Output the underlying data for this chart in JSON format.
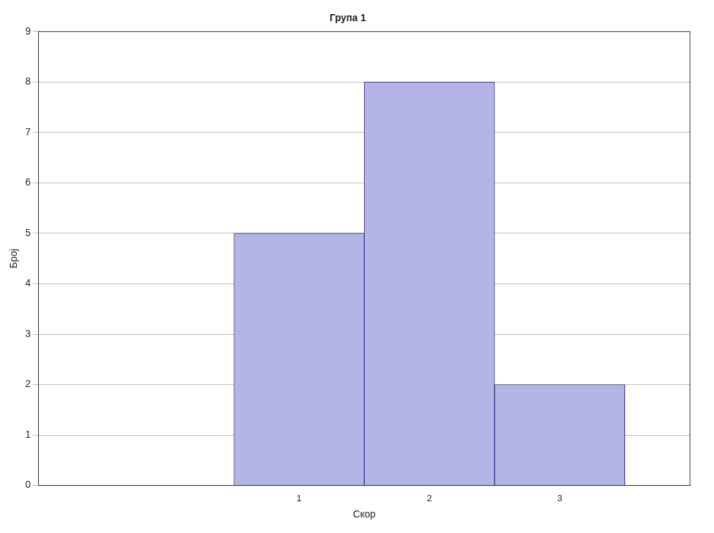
{
  "chart_data": {
    "type": "histogram",
    "title": "Група 1",
    "xlabel": "Скор",
    "ylabel": "Број",
    "bins": [
      0.5,
      1.5,
      2.5,
      3.5
    ],
    "values": [
      5,
      8,
      2
    ],
    "color": "#b4b4e6",
    "xlim": [
      -1,
      4
    ],
    "xticks": [
      1,
      2,
      3
    ],
    "ylim": [
      0,
      9
    ],
    "yticks": [
      0,
      1,
      2,
      3,
      4,
      5,
      6,
      7,
      8,
      9
    ],
    "grid": "y"
  }
}
